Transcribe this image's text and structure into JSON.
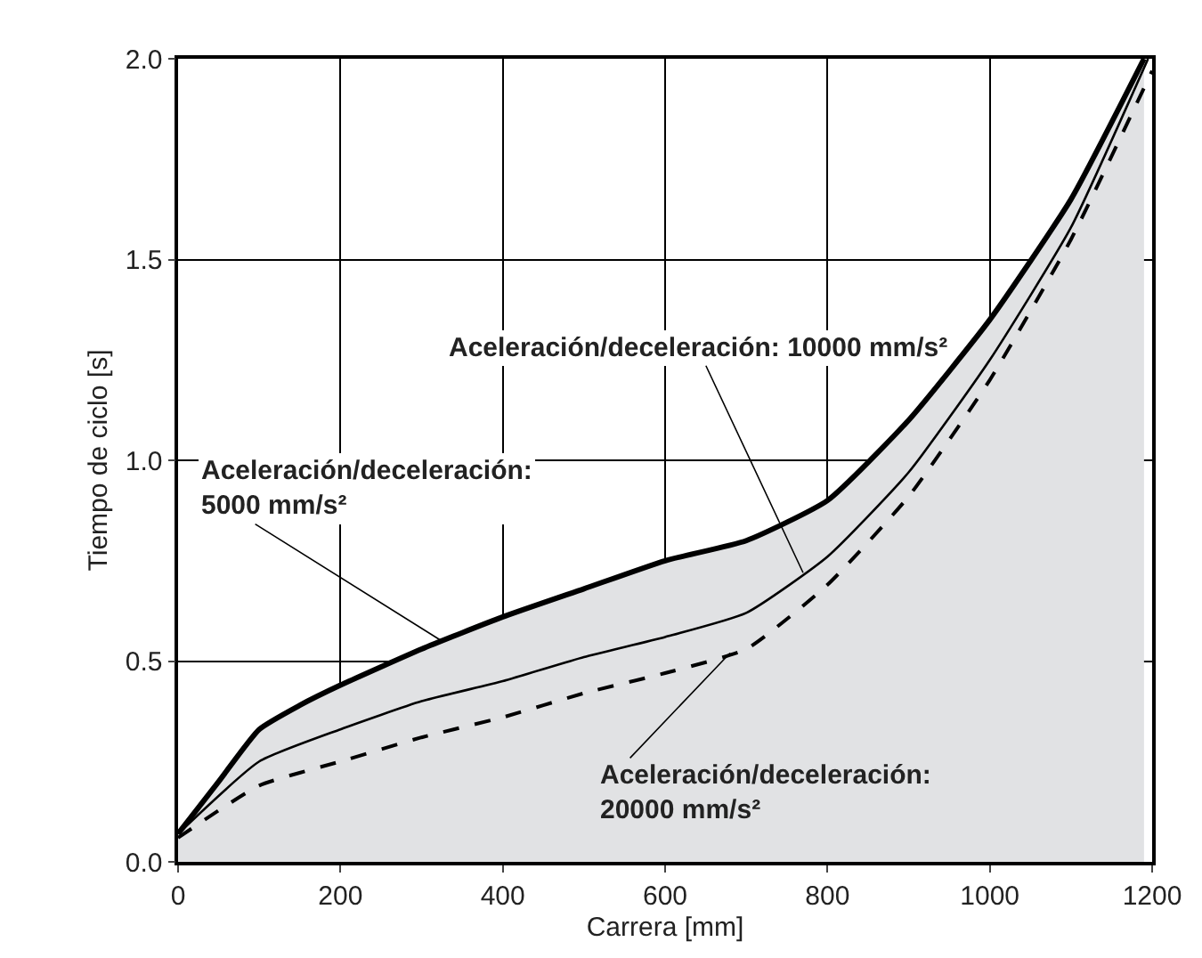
{
  "chart_data": {
    "type": "line",
    "xlabel": "Carrera [mm]",
    "ylabel": "Tiempo de ciclo [s]",
    "xlim": [
      0,
      1200
    ],
    "xticks": [
      0,
      200,
      400,
      600,
      800,
      1000,
      1200
    ],
    "ylim": [
      0,
      2.0
    ],
    "yticks": [
      {
        "value": 0,
        "label": "0.0"
      },
      0.5,
      {
        "value": 1,
        "label": "1.0"
      },
      1.5,
      {
        "value": 2,
        "label": "2.0"
      }
    ],
    "grid": true,
    "marker": "none",
    "series": [
      {
        "type": "area",
        "color": "#000000",
        "line_style": "solid",
        "x": [
          0,
          50,
          100,
          150,
          200,
          300,
          400,
          500,
          600,
          700,
          800,
          900,
          1000,
          1100,
          1190
        ],
        "values": [
          0.07,
          0.2,
          0.33,
          0.39,
          0.44,
          0.53,
          0.61,
          0.68,
          0.75,
          0.8,
          0.9,
          1.1,
          1.35,
          1.65,
          2.0
        ]
      },
      {
        "color": "#000000",
        "line_style": "solid",
        "x": [
          0,
          100,
          200,
          300,
          400,
          500,
          600,
          700,
          800,
          900,
          1000,
          1100,
          1195
        ],
        "values": [
          0.07,
          0.25,
          0.33,
          0.4,
          0.45,
          0.51,
          0.56,
          0.62,
          0.76,
          0.97,
          1.25,
          1.58,
          2.0
        ]
      },
      {
        "color": "#000000",
        "line_style": "dashed",
        "x": [
          0,
          100,
          200,
          300,
          400,
          500,
          600,
          700,
          800,
          900,
          1000,
          1100,
          1200
        ],
        "values": [
          0.06,
          0.19,
          0.25,
          0.31,
          0.36,
          0.42,
          0.47,
          0.53,
          0.69,
          0.91,
          1.2,
          1.55,
          1.97
        ]
      }
    ],
    "annotations": [
      {
        "text": "Aceleración/deceleración: 10000 mm/s²",
        "x": 770,
        "y": 0.72
      },
      {
        "text": "Aceleración/deceleración:\n5000 mm/s²",
        "x": 325,
        "y": 0.55
      },
      {
        "text": "Aceleración/deceleración:\n20000 mm/s²",
        "x": 680,
        "y": 0.52
      }
    ]
  }
}
